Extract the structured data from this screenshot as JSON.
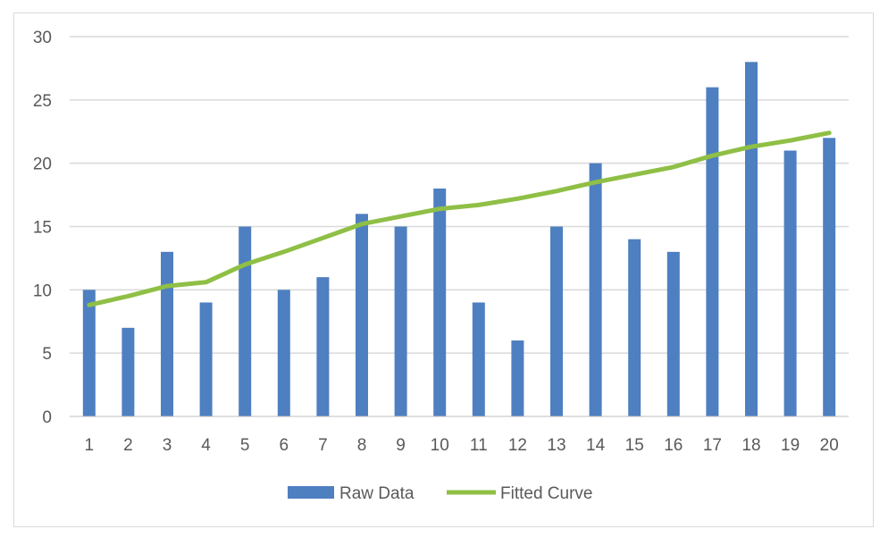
{
  "chart_data": {
    "type": "bar",
    "title": "",
    "xlabel": "",
    "ylabel": "",
    "ylim": [
      0,
      30
    ],
    "y_ticks": [
      0,
      5,
      10,
      15,
      20,
      25,
      30
    ],
    "grid": true,
    "legend_position": "bottom",
    "categories": [
      "1",
      "2",
      "3",
      "4",
      "5",
      "6",
      "7",
      "8",
      "9",
      "10",
      "11",
      "12",
      "13",
      "14",
      "15",
      "16",
      "17",
      "18",
      "19",
      "20"
    ],
    "series": [
      {
        "name": "Raw Data",
        "type": "bar",
        "color": "#4e7fc1",
        "values": [
          10,
          7,
          13,
          9,
          15,
          10,
          11,
          16,
          15,
          18,
          9,
          6,
          15,
          20,
          14,
          13,
          26,
          28,
          21,
          22
        ]
      },
      {
        "name": "Fitted Curve",
        "type": "line",
        "color": "#8fbf45",
        "values": [
          8.8,
          9.5,
          10.3,
          10.6,
          12.0,
          13.0,
          14.1,
          15.2,
          15.8,
          16.4,
          16.7,
          17.2,
          17.8,
          18.5,
          19.1,
          19.7,
          20.6,
          21.3,
          21.8,
          22.4
        ]
      }
    ]
  }
}
